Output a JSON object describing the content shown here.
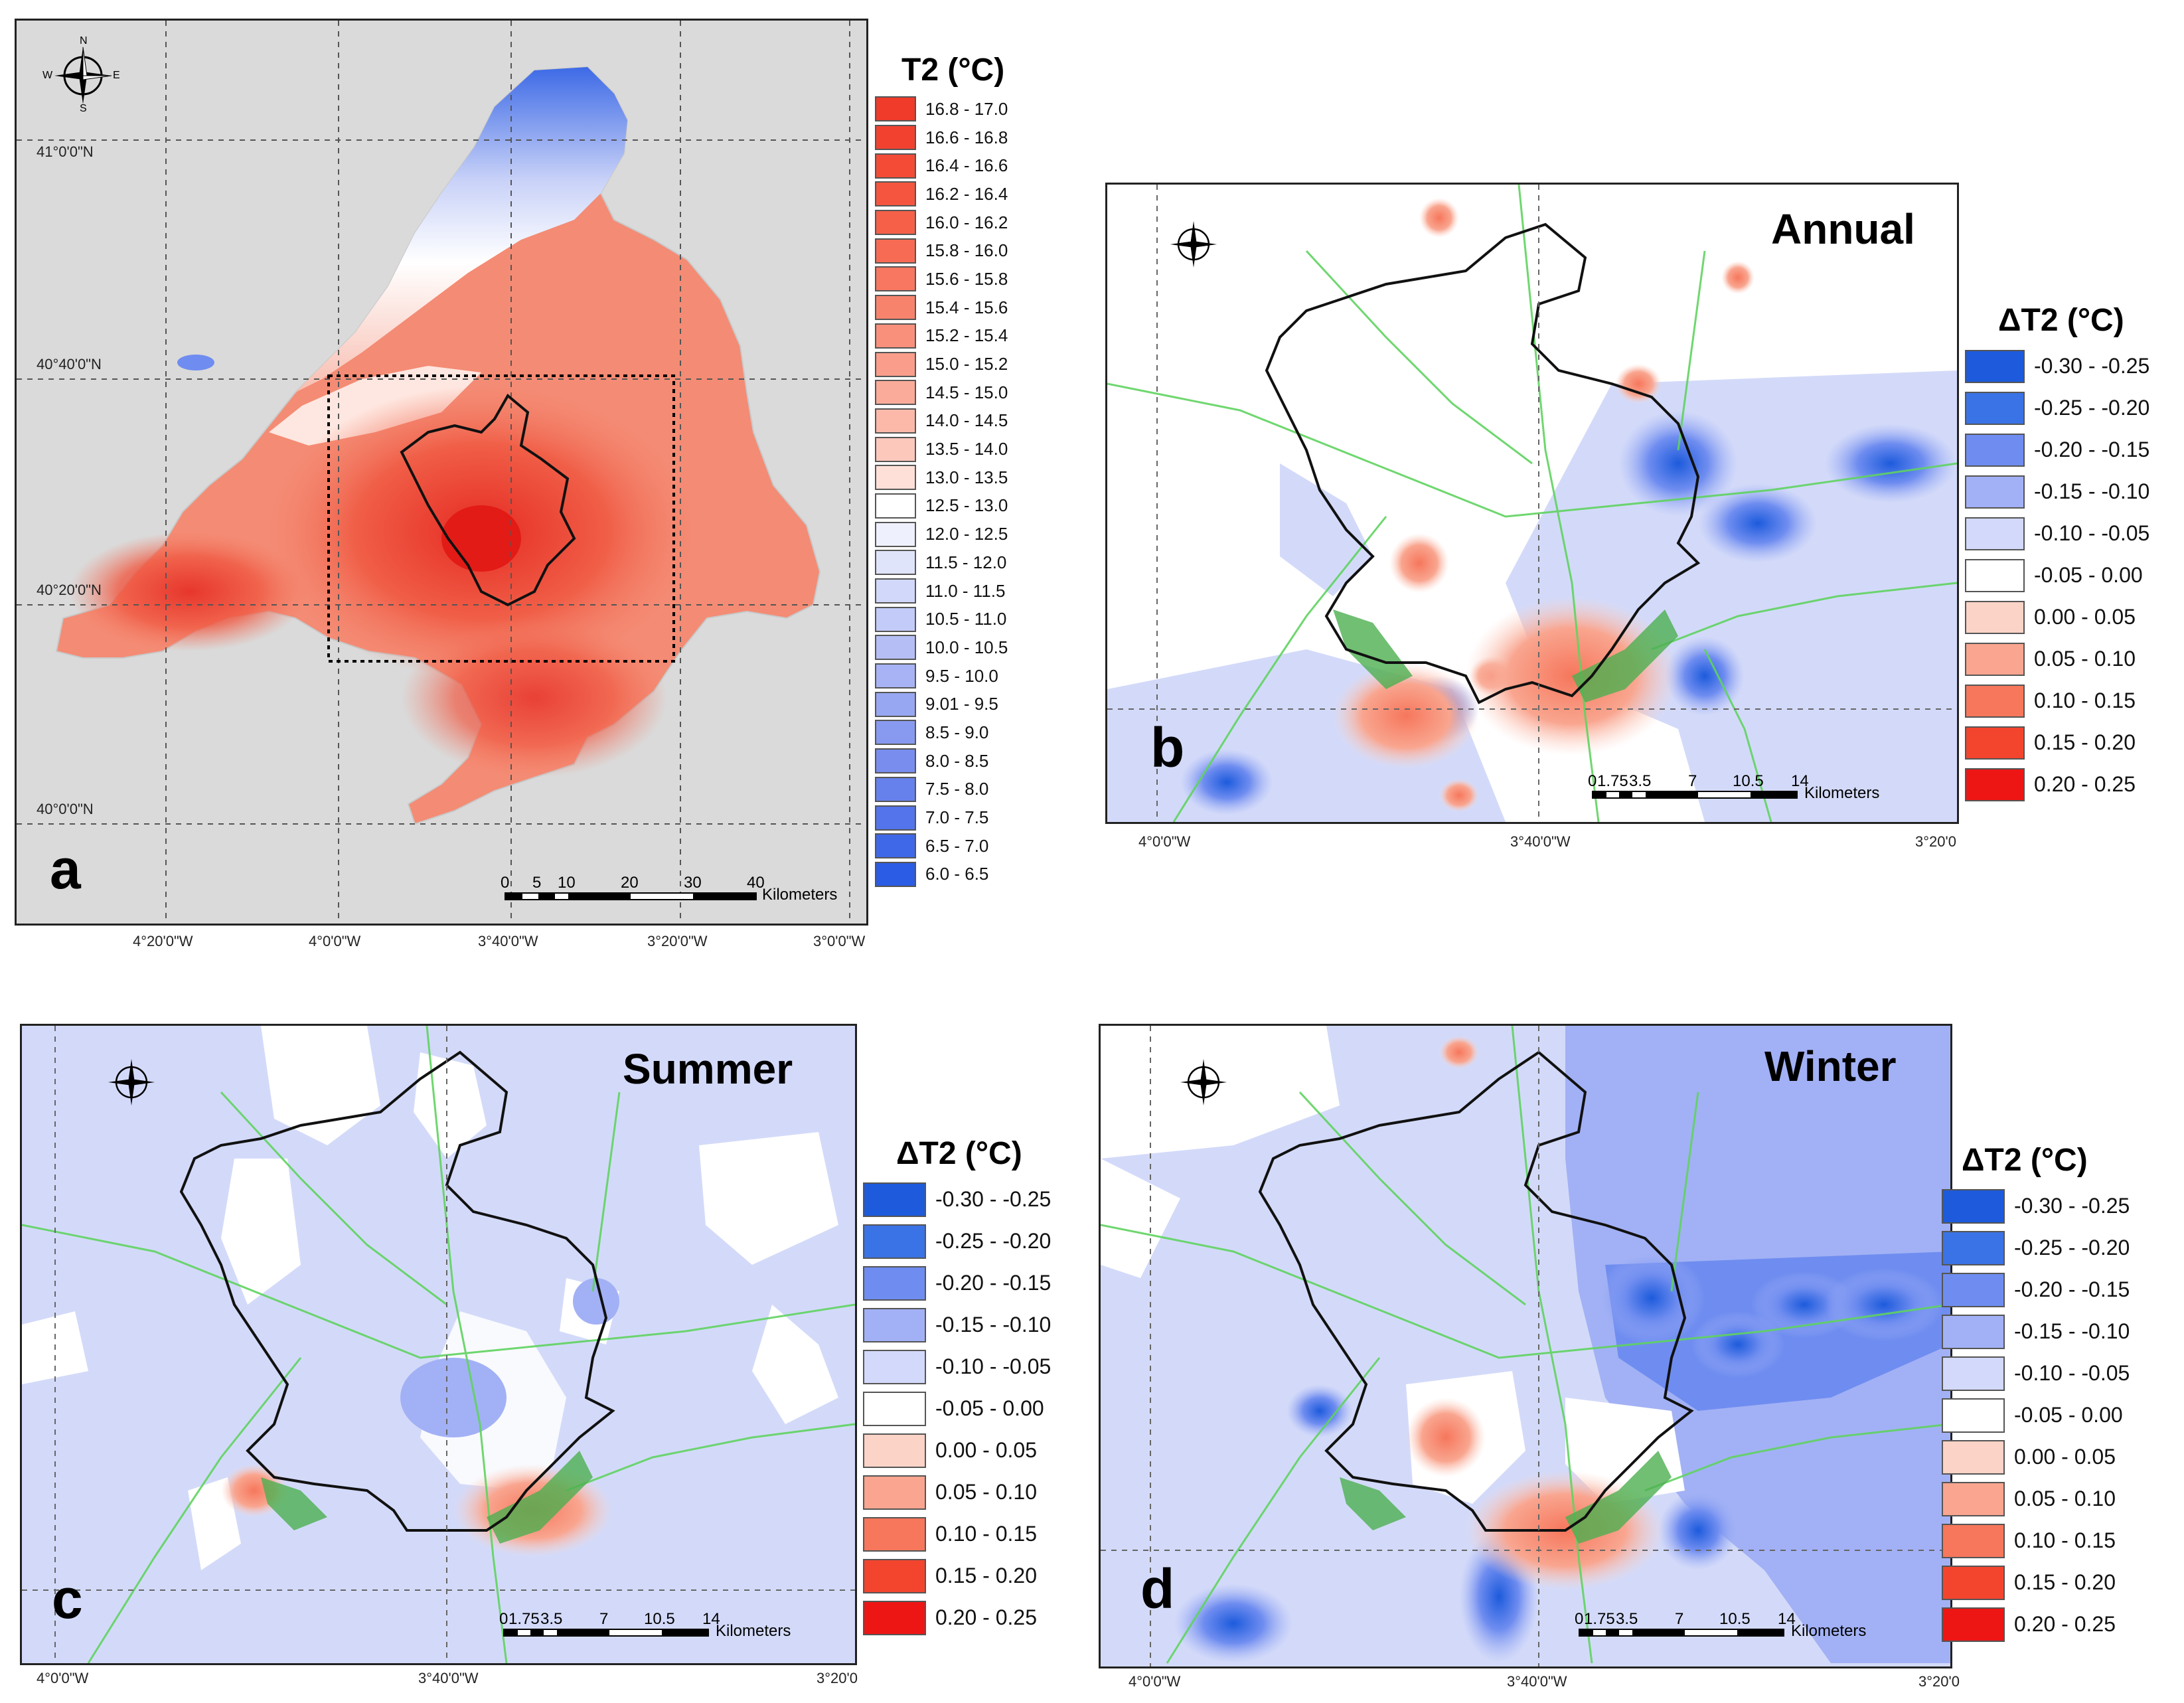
{
  "panel_a": {
    "letter": "a",
    "latitude_labels": [
      "41°0'0\"N",
      "40°40'0\"N",
      "40°20'0\"N",
      "40°0'0\"N"
    ],
    "longitude_labels": [
      "4°20'0\"W",
      "4°0'0\"W",
      "3°40'0\"W",
      "3°20'0\"W",
      "3°0'0\"W"
    ],
    "scale": {
      "ticks": [
        "0",
        "5",
        "10",
        "20",
        "30",
        "40"
      ],
      "unit": "Kilometers"
    },
    "compass": {
      "n": "N",
      "s": "S",
      "e": "E",
      "w": "W"
    },
    "legend": {
      "title": "T2 (°C)",
      "items": [
        {
          "label": "16.8 - 17.0",
          "color": "#f03a2a"
        },
        {
          "label": "16.6 - 16.8",
          "color": "#f2422f"
        },
        {
          "label": "16.4 - 16.6",
          "color": "#f44b36"
        },
        {
          "label": "16.2 - 16.4",
          "color": "#f5553f"
        },
        {
          "label": "16.0 - 16.2",
          "color": "#f66048"
        },
        {
          "label": "15.8 - 16.0",
          "color": "#f76b54"
        },
        {
          "label": "15.6 - 15.8",
          "color": "#f87760"
        },
        {
          "label": "15.4 - 15.6",
          "color": "#f8836d"
        },
        {
          "label": "15.2 - 15.4",
          "color": "#f9907b"
        },
        {
          "label": "15.0 - 15.2",
          "color": "#fa9d8a"
        },
        {
          "label": "14.5 - 15.0",
          "color": "#fbab9a"
        },
        {
          "label": "14.0 - 14.5",
          "color": "#fcb9aa"
        },
        {
          "label": "13.5 - 14.0",
          "color": "#fdc8bc"
        },
        {
          "label": "13.0 - 13.5",
          "color": "#fee0d8"
        },
        {
          "label": "12.5 - 13.0",
          "color": "#ffffff"
        },
        {
          "label": "12.0 - 12.5",
          "color": "#eef0fd"
        },
        {
          "label": "11.5 - 12.0",
          "color": "#e0e4fb"
        },
        {
          "label": "11.0 - 11.5",
          "color": "#d2d8fa"
        },
        {
          "label": "10.5 - 11.0",
          "color": "#c3cbf8"
        },
        {
          "label": "10.0 - 10.5",
          "color": "#b5bff6"
        },
        {
          "label": "9.5 - 10.0",
          "color": "#a7b3f4"
        },
        {
          "label": "9.01 - 9.5",
          "color": "#98a7f2"
        },
        {
          "label": "8.5 - 9.0",
          "color": "#889af0"
        },
        {
          "label": "8.0 - 8.5",
          "color": "#788dee"
        },
        {
          "label": "7.5 - 8.0",
          "color": "#6681ec"
        },
        {
          "label": "7.0 - 7.5",
          "color": "#5374ea"
        },
        {
          "label": "6.5 - 7.0",
          "color": "#3f68e8"
        },
        {
          "label": "6.0 - 6.5",
          "color": "#2a5ce5"
        }
      ]
    }
  },
  "delta_legend": {
    "title": "ΔT2 (°C)",
    "items": [
      {
        "label": "-0.30 - -0.25",
        "color": "#1d5bdc"
      },
      {
        "label": "-0.25 - -0.20",
        "color": "#3a73e6"
      },
      {
        "label": "-0.20 - -0.15",
        "color": "#6f8df0"
      },
      {
        "label": "-0.15 - -0.10",
        "color": "#a2b1f5"
      },
      {
        "label": "-0.10 - -0.05",
        "color": "#d2d9fa"
      },
      {
        "label": "-0.05 - 0.00",
        "color": "#ffffff"
      },
      {
        "label": "0.00 - 0.05",
        "color": "#fcd3c7"
      },
      {
        "label": "0.05 - 0.10",
        "color": "#f9a58f"
      },
      {
        "label": "0.10 - 0.15",
        "color": "#f6775c"
      },
      {
        "label": "0.15 - 0.20",
        "color": "#f3452e"
      },
      {
        "label": "0.20 - 0.25",
        "color": "#ee1515"
      }
    ]
  },
  "panel_b": {
    "letter": "b",
    "season": "Annual",
    "longitude_labels": [
      "4°0'0\"W",
      "3°40'0\"W",
      "3°20'0"
    ],
    "scale": {
      "ticks": [
        "0",
        "1.75",
        "3.5",
        "7",
        "10.5",
        "14"
      ],
      "unit": "Kilometers"
    }
  },
  "panel_c": {
    "letter": "c",
    "season": "Summer",
    "longitude_labels": [
      "4°0'0\"W",
      "3°40'0\"W",
      "3°20'0"
    ],
    "scale": {
      "ticks": [
        "0",
        "1.75",
        "3.5",
        "7",
        "10.5",
        "14"
      ],
      "unit": "Kilometers"
    }
  },
  "panel_d": {
    "letter": "d",
    "season": "Winter",
    "longitude_labels": [
      "4°0'0\"W",
      "3°40'0\"W",
      "3°20'0"
    ],
    "scale": {
      "ticks": [
        "0",
        "1.75",
        "3.5",
        "7",
        "10.5",
        "14"
      ],
      "unit": "Kilometers"
    }
  },
  "colors": {
    "background_grey": "#dadada",
    "delta_base_blue": "#d3daf9",
    "road_green": "#5fd35f",
    "urban_green": "#4caf50"
  }
}
